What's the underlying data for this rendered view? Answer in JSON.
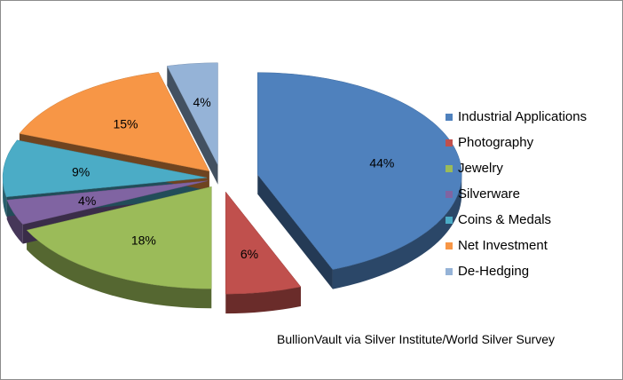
{
  "chart_data": {
    "type": "pie",
    "style": "3d-exploded",
    "title": "",
    "slices": [
      {
        "label": "Industrial Applications",
        "value": 44,
        "data_label": "44%",
        "color": "#4F81BD"
      },
      {
        "label": "Photography",
        "value": 6,
        "data_label": "6%",
        "color": "#C0504D"
      },
      {
        "label": "Jewelry",
        "value": 18,
        "data_label": "18%",
        "color": "#9BBB59"
      },
      {
        "label": "Silverware",
        "value": 4,
        "data_label": "4%",
        "color": "#8064A2"
      },
      {
        "label": "Coins & Medals",
        "value": 9,
        "data_label": "9%",
        "color": "#4BACC6"
      },
      {
        "label": "Net Investment",
        "value": 15,
        "data_label": "15%",
        "color": "#F79646"
      },
      {
        "label": "De-Hedging",
        "value": 4,
        "data_label": "4%",
        "color": "#95B3D7"
      }
    ],
    "legend_position": "right",
    "source": "BullionVault via Silver Institute/World Silver Survey"
  }
}
